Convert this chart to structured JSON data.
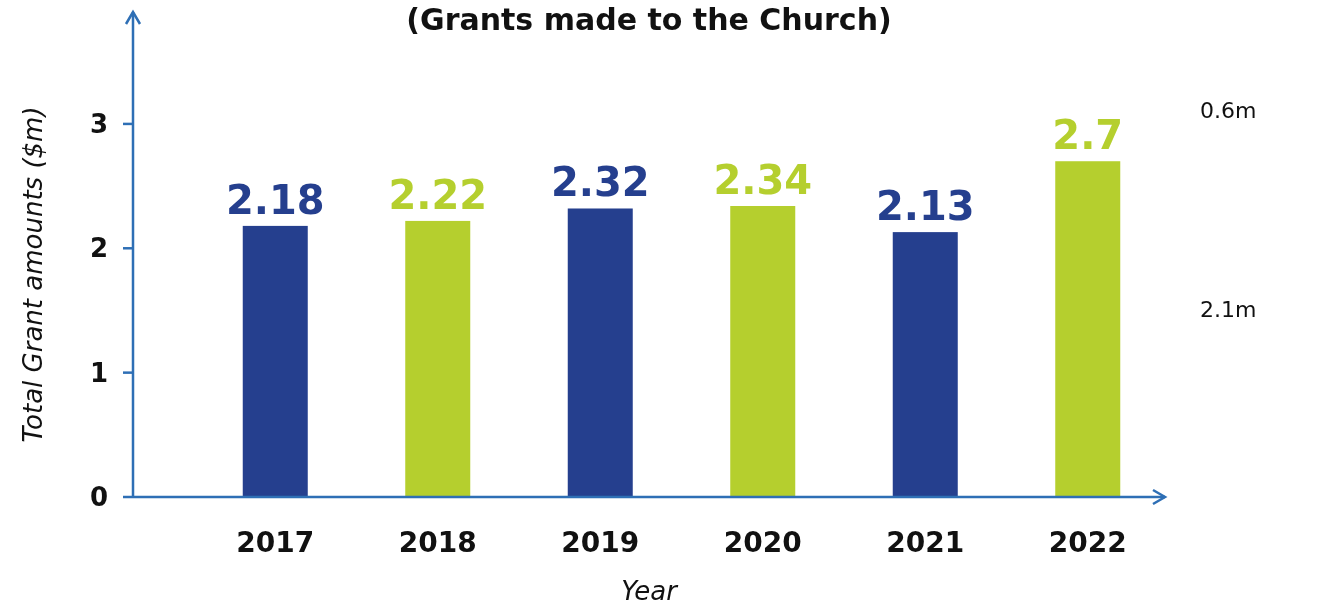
{
  "chart_data": {
    "type": "bar",
    "title": "(Grants made to the Church)",
    "xlabel": "Year",
    "ylabel": "Total Grant amounts ($m)",
    "categories": [
      "2017",
      "2018",
      "2019",
      "2020",
      "2021",
      "2022"
    ],
    "values": [
      2.18,
      2.22,
      2.32,
      2.34,
      2.13,
      2.7
    ],
    "colors": [
      "#253f8e",
      "#b5cf2e",
      "#253f8e",
      "#b5cf2e",
      "#253f8e",
      "#b5cf2e"
    ],
    "ylim": [
      0,
      3.9
    ],
    "yticks": [
      0,
      1,
      2,
      3
    ],
    "data_labels": true,
    "annotations": [
      "0.6m",
      "2.1m"
    ]
  }
}
